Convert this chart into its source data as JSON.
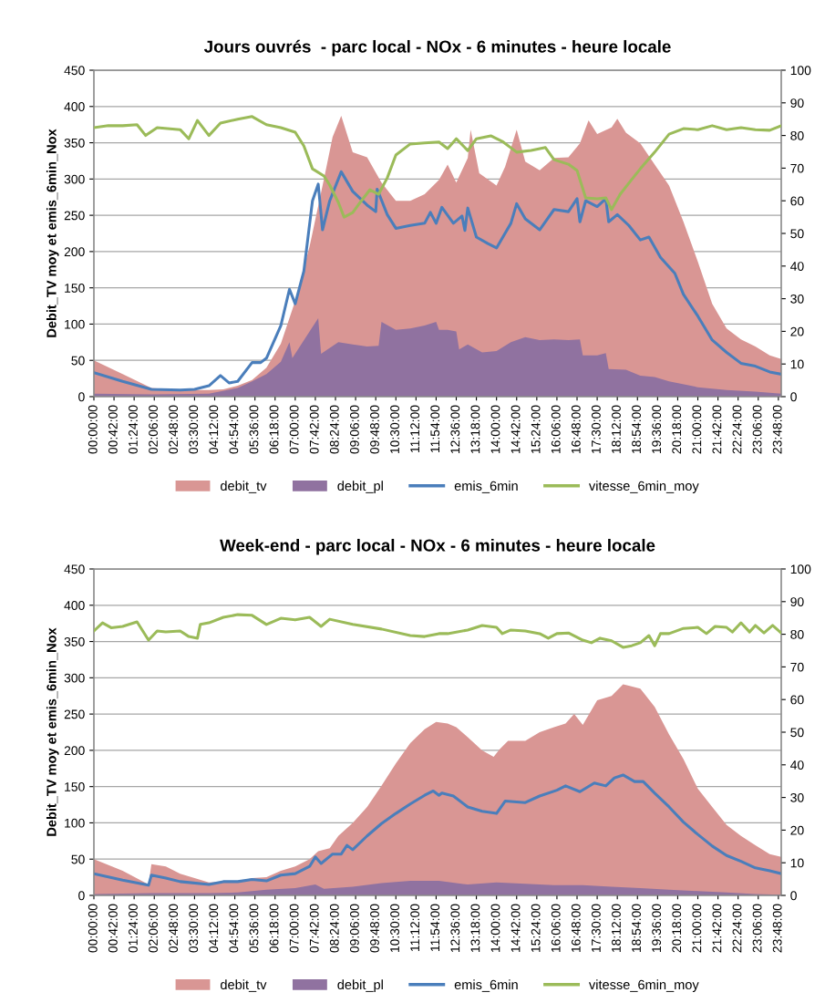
{
  "chart_data": [
    {
      "type": "area",
      "title": "Jours ouvrés  - parc local - NOx - 6 minutes - heure locale",
      "ylabel": "Debit_TV moy et emis_6min_Nox",
      "xlim": [
        0,
        23.9
      ],
      "ylim": [
        0,
        450
      ],
      "yticks": [
        0,
        50,
        100,
        150,
        200,
        250,
        300,
        350,
        400,
        450
      ],
      "y2lim": [
        0,
        100
      ],
      "y2ticks": [
        0,
        10,
        20,
        30,
        40,
        50,
        60,
        70,
        80,
        90,
        100
      ],
      "grid": "y",
      "legend": "bottom",
      "xticks": [
        {
          "value": 0,
          "label": "00:00:00"
        },
        {
          "value": 0.7,
          "label": "00:42:00"
        },
        {
          "value": 1.4,
          "label": "01:24:00"
        },
        {
          "value": 2.1,
          "label": "02:06:00"
        },
        {
          "value": 2.8,
          "label": "02:48:00"
        },
        {
          "value": 3.5,
          "label": "03:30:00"
        },
        {
          "value": 4.2,
          "label": "04:12:00"
        },
        {
          "value": 4.9,
          "label": "04:54:00"
        },
        {
          "value": 5.6,
          "label": "05:36:00"
        },
        {
          "value": 6.3,
          "label": "06:18:00"
        },
        {
          "value": 7,
          "label": "07:00:00"
        },
        {
          "value": 7.7,
          "label": "07:42:00"
        },
        {
          "value": 8.4,
          "label": "08:24:00"
        },
        {
          "value": 9.1,
          "label": "09:06:00"
        },
        {
          "value": 9.8,
          "label": "09:48:00"
        },
        {
          "value": 10.5,
          "label": "10:30:00"
        },
        {
          "value": 11.2,
          "label": "11:12:00"
        },
        {
          "value": 11.9,
          "label": "11:54:00"
        },
        {
          "value": 12.6,
          "label": "12:36:00"
        },
        {
          "value": 13.3,
          "label": "13:18:00"
        },
        {
          "value": 14,
          "label": "14:00:00"
        },
        {
          "value": 14.7,
          "label": "14:42:00"
        },
        {
          "value": 15.4,
          "label": "15:24:00"
        },
        {
          "value": 16.1,
          "label": "16:06:00"
        },
        {
          "value": 16.8,
          "label": "16:48:00"
        },
        {
          "value": 17.5,
          "label": "17:30:00"
        },
        {
          "value": 18.2,
          "label": "18:12:00"
        },
        {
          "value": 18.9,
          "label": "18:54:00"
        },
        {
          "value": 19.6,
          "label": "19:36:00"
        },
        {
          "value": 20.3,
          "label": "20:18:00"
        },
        {
          "value": 21,
          "label": "21:00:00"
        },
        {
          "value": 21.7,
          "label": "21:42:00"
        },
        {
          "value": 22.4,
          "label": "22:24:00"
        },
        {
          "value": 23.1,
          "label": "23:06:00"
        },
        {
          "value": 23.8,
          "label": "23:48:00"
        }
      ],
      "series": [
        {
          "name": "debit_tv",
          "color": "#d99694",
          "x": [
            0,
            1,
            2,
            3,
            4,
            4.5,
            5,
            5.5,
            6,
            6.5,
            7,
            7.5,
            8,
            8.3,
            8.6,
            9,
            9.5,
            10,
            10.5,
            11,
            11.5,
            12,
            12.3,
            12.6,
            13,
            13.1,
            13.4,
            14,
            14.3,
            14.7,
            15,
            15.5,
            16,
            16.5,
            16.9,
            17.2,
            17.5,
            18,
            18.2,
            18.5,
            19,
            19.5,
            20,
            20.5,
            21,
            21.5,
            22,
            22.5,
            23,
            23.5,
            23.9
          ],
          "values": [
            50,
            31,
            12,
            9,
            9,
            10,
            15,
            23,
            40,
            73,
            132,
            207,
            300,
            358,
            387,
            337,
            330,
            295,
            270,
            270,
            279,
            299,
            320,
            295,
            329,
            368,
            308,
            291,
            317,
            368,
            324,
            312,
            329,
            330,
            349,
            381,
            362,
            371,
            383,
            364,
            349,
            320,
            291,
            241,
            186,
            128,
            94,
            79,
            69,
            57,
            52
          ]
        },
        {
          "name": "debit_pl",
          "color": "#9072a0",
          "x": [
            0,
            2,
            4,
            5,
            5.5,
            6,
            6.5,
            6.8,
            6.9,
            7.5,
            7.8,
            7.9,
            8.5,
            9,
            9.5,
            9.9,
            10,
            10.5,
            11,
            11.5,
            11.9,
            12,
            12.3,
            12.6,
            12.7,
            13,
            13.5,
            14,
            14.5,
            15,
            15.5,
            16,
            16.5,
            16.9,
            17,
            17.5,
            17.8,
            17.9,
            18.5,
            19,
            19.5,
            20,
            21,
            22,
            23,
            23.9
          ],
          "values": [
            4,
            3,
            4,
            12,
            21,
            31,
            48,
            75,
            53,
            90,
            108,
            59,
            75,
            72,
            69,
            70,
            103,
            92,
            94,
            98,
            103,
            92,
            92,
            90,
            65,
            72,
            61,
            63,
            75,
            82,
            78,
            79,
            78,
            79,
            57,
            57,
            60,
            38,
            37,
            29,
            27,
            21,
            13,
            9,
            7,
            4
          ]
        },
        {
          "name": "emis_6min",
          "type": "line",
          "color": "#4a7ebb",
          "x": [
            0,
            1,
            2,
            3,
            3.5,
            4,
            4.4,
            4.7,
            5,
            5.5,
            5.8,
            6,
            6.5,
            6.8,
            7,
            7.3,
            7.6,
            7.8,
            7.95,
            8.2,
            8.6,
            9,
            9.5,
            9.8,
            9.85,
            10.2,
            10.5,
            11,
            11.5,
            11.7,
            11.9,
            12.1,
            12.5,
            12.8,
            12.9,
            13,
            13.3,
            13.7,
            14,
            14.5,
            14.7,
            15,
            15.5,
            16,
            16.5,
            16.8,
            16.9,
            17.1,
            17.5,
            17.8,
            17.9,
            18.2,
            18.6,
            19,
            19.3,
            19.7,
            20.2,
            20.5,
            21,
            21.5,
            22,
            22.5,
            23,
            23.5,
            23.9
          ],
          "values": [
            33,
            21,
            10,
            9,
            10,
            15,
            29,
            19,
            21,
            47,
            47,
            53,
            98,
            148,
            128,
            173,
            270,
            293,
            230,
            270,
            310,
            283,
            264,
            255,
            286,
            251,
            232,
            236,
            239,
            254,
            239,
            261,
            239,
            249,
            229,
            260,
            220,
            211,
            205,
            239,
            266,
            245,
            230,
            258,
            255,
            273,
            241,
            270,
            262,
            273,
            241,
            251,
            236,
            216,
            220,
            192,
            170,
            141,
            111,
            78,
            61,
            46,
            42,
            34,
            31
          ]
        },
        {
          "name": "vitesse_6min_moy",
          "type": "line",
          "axis": "y2",
          "color": "#9bbb59",
          "x": [
            0,
            0.5,
            1,
            1.5,
            1.8,
            2.2,
            3,
            3.3,
            3.6,
            4,
            4.4,
            5,
            5.5,
            6,
            6.5,
            7,
            7.3,
            7.6,
            8,
            8.2,
            8.5,
            8.7,
            9,
            9.3,
            9.6,
            9.9,
            10.2,
            10.5,
            11,
            11.5,
            12,
            12.3,
            12.6,
            13,
            13.3,
            13.8,
            14.2,
            14.7,
            15.2,
            15.7,
            16,
            16.5,
            16.8,
            17.1,
            17.5,
            17.8,
            18,
            18.3,
            18.7,
            19,
            19.5,
            20,
            20.5,
            21,
            21.5,
            22,
            22.5,
            23,
            23.5,
            23.9
          ],
          "values": [
            82.4,
            83,
            83,
            83.3,
            80,
            82.4,
            81.8,
            79,
            84.6,
            80,
            83.8,
            85,
            85.8,
            83.3,
            82.4,
            81,
            76.8,
            69.8,
            67.6,
            64.8,
            59.5,
            55,
            56.4,
            60,
            63.4,
            62,
            67,
            74,
            77.4,
            77.7,
            78,
            76,
            79,
            75.4,
            79,
            79.9,
            78.2,
            74.9,
            75.4,
            76.3,
            72.6,
            71.2,
            69.3,
            60.9,
            60.6,
            60.9,
            57.3,
            62,
            66.5,
            69.8,
            74.9,
            80.4,
            82.1,
            81.8,
            83,
            81.8,
            82.4,
            81.8,
            81.6,
            83
          ]
        }
      ]
    },
    {
      "type": "area",
      "title": "Week-end - parc local - NOx - 6 minutes - heure locale",
      "ylabel": "Debit_TV moy et emis_6min_Nox",
      "xlim": [
        0,
        23.9
      ],
      "ylim": [
        0,
        450
      ],
      "yticks": [
        0,
        50,
        100,
        150,
        200,
        250,
        300,
        350,
        400,
        450
      ],
      "y2lim": [
        0,
        100
      ],
      "y2ticks": [
        0,
        10,
        20,
        30,
        40,
        50,
        60,
        70,
        80,
        90,
        100
      ],
      "grid": "y",
      "legend": "bottom",
      "xticks": [
        {
          "value": 0,
          "label": "00:00:00"
        },
        {
          "value": 0.7,
          "label": "00:42:00"
        },
        {
          "value": 1.4,
          "label": "01:24:00"
        },
        {
          "value": 2.1,
          "label": "02:06:00"
        },
        {
          "value": 2.8,
          "label": "02:48:00"
        },
        {
          "value": 3.5,
          "label": "03:30:00"
        },
        {
          "value": 4.2,
          "label": "04:12:00"
        },
        {
          "value": 4.9,
          "label": "04:54:00"
        },
        {
          "value": 5.6,
          "label": "05:36:00"
        },
        {
          "value": 6.3,
          "label": "06:18:00"
        },
        {
          "value": 7,
          "label": "07:00:00"
        },
        {
          "value": 7.7,
          "label": "07:42:00"
        },
        {
          "value": 8.4,
          "label": "08:24:00"
        },
        {
          "value": 9.1,
          "label": "09:06:00"
        },
        {
          "value": 9.8,
          "label": "09:48:00"
        },
        {
          "value": 10.5,
          "label": "10:30:00"
        },
        {
          "value": 11.2,
          "label": "11:12:00"
        },
        {
          "value": 11.9,
          "label": "11:54:00"
        },
        {
          "value": 12.6,
          "label": "12:36:00"
        },
        {
          "value": 13.3,
          "label": "13:18:00"
        },
        {
          "value": 14,
          "label": "14:00:00"
        },
        {
          "value": 14.7,
          "label": "14:42:00"
        },
        {
          "value": 15.4,
          "label": "15:24:00"
        },
        {
          "value": 16.1,
          "label": "16:06:00"
        },
        {
          "value": 16.8,
          "label": "16:48:00"
        },
        {
          "value": 17.5,
          "label": "17:30:00"
        },
        {
          "value": 18.2,
          "label": "18:12:00"
        },
        {
          "value": 18.9,
          "label": "18:54:00"
        },
        {
          "value": 19.6,
          "label": "19:36:00"
        },
        {
          "value": 20.3,
          "label": "20:18:00"
        },
        {
          "value": 21,
          "label": "21:00:00"
        },
        {
          "value": 21.7,
          "label": "21:42:00"
        },
        {
          "value": 22.4,
          "label": "22:24:00"
        },
        {
          "value": 23.1,
          "label": "23:06:00"
        },
        {
          "value": 23.8,
          "label": "23:48:00"
        }
      ],
      "series": [
        {
          "name": "debit_tv",
          "color": "#d99694",
          "x": [
            0,
            1,
            1.9,
            2,
            2.5,
            3,
            3.5,
            4,
            4.5,
            5,
            5.5,
            6,
            6.5,
            7,
            7.5,
            7.8,
            8.2,
            8.5,
            9,
            9.5,
            10,
            10.5,
            11,
            11.5,
            11.9,
            12.3,
            12.6,
            13,
            13.5,
            13.9,
            14.1,
            14.4,
            15,
            15.5,
            16,
            16.4,
            16.7,
            17,
            17.5,
            18,
            18.4,
            18.6,
            19,
            19.5,
            20,
            20.5,
            21,
            21.5,
            22,
            22.5,
            23,
            23.5,
            23.9
          ],
          "values": [
            50,
            34,
            15,
            43,
            40,
            30,
            24,
            18,
            19,
            19,
            24,
            25,
            34,
            40,
            50,
            61,
            65,
            82,
            100,
            122,
            151,
            182,
            210,
            229,
            239,
            237,
            232,
            218,
            200,
            191,
            201,
            213,
            213,
            225,
            232,
            237,
            250,
            235,
            269,
            275,
            291,
            289,
            285,
            260,
            222,
            188,
            147,
            122,
            97,
            82,
            69,
            57,
            53
          ]
        },
        {
          "name": "debit_pl",
          "color": "#9072a0",
          "x": [
            0,
            2,
            4,
            5,
            6,
            7,
            7.7,
            8,
            9,
            10,
            11,
            12,
            13,
            14,
            15,
            16,
            17,
            18,
            19,
            20,
            21,
            22,
            23,
            23.9
          ],
          "values": [
            2,
            3,
            3,
            4,
            8,
            10,
            15,
            9,
            12,
            17,
            20,
            20,
            15,
            18,
            16,
            14,
            14,
            12,
            10,
            8,
            6,
            4,
            2,
            1
          ]
        },
        {
          "name": "emis_6min",
          "type": "line",
          "color": "#4a7ebb",
          "x": [
            0,
            1,
            1.9,
            2,
            2.5,
            3,
            4,
            4.5,
            5,
            5.5,
            6,
            6.5,
            7,
            7.5,
            7.7,
            7.9,
            8.3,
            8.6,
            8.8,
            9,
            9.5,
            10,
            10.5,
            11,
            11.5,
            11.8,
            12,
            12.1,
            12.5,
            13,
            13.5,
            14,
            14.3,
            15,
            15.5,
            16.1,
            16.4,
            16.9,
            17.4,
            17.8,
            18.1,
            18.4,
            18.8,
            19.1,
            19.5,
            20,
            20.5,
            21,
            21.5,
            22,
            22.5,
            23,
            23.5,
            23.9
          ],
          "values": [
            30,
            21,
            14,
            28,
            24,
            19,
            15,
            19,
            19,
            22,
            20,
            28,
            30,
            40,
            53,
            44,
            57,
            57,
            69,
            63,
            82,
            99,
            113,
            126,
            138,
            144,
            138,
            141,
            137,
            122,
            116,
            113,
            130,
            128,
            137,
            145,
            151,
            143,
            155,
            151,
            162,
            166,
            157,
            157,
            141,
            122,
            101,
            84,
            68,
            55,
            47,
            38,
            34,
            30
          ]
        },
        {
          "name": "vitesse_6min_moy",
          "type": "line",
          "axis": "y2",
          "color": "#9bbb59",
          "x": [
            0,
            0.3,
            0.6,
            1,
            1.5,
            1.9,
            2.2,
            2.5,
            3,
            3.3,
            3.6,
            3.7,
            4,
            4.5,
            5,
            5.5,
            6,
            6.5,
            7,
            7.5,
            7.9,
            8.2,
            9,
            10,
            11,
            11.5,
            12,
            12.3,
            13,
            13.5,
            14,
            14.2,
            14.5,
            15,
            15.5,
            15.8,
            16.1,
            16.5,
            17,
            17.3,
            17.6,
            18,
            18.4,
            18.7,
            19,
            19.3,
            19.5,
            19.7,
            20,
            20.5,
            21,
            21.3,
            21.6,
            22,
            22.2,
            22.5,
            22.8,
            23,
            23.3,
            23.6,
            23.9
          ],
          "values": [
            81,
            83.5,
            82,
            82.4,
            83.8,
            78.2,
            81,
            80.7,
            81,
            79.3,
            78.8,
            83,
            83.5,
            85.2,
            86,
            85.8,
            83,
            84.9,
            84.4,
            85.2,
            82.4,
            84.6,
            83,
            81.6,
            79.6,
            79.3,
            80.2,
            80.2,
            81.3,
            82.7,
            82.1,
            80.2,
            81.3,
            81,
            80.2,
            78.8,
            80.2,
            80.4,
            78.2,
            77.4,
            78.8,
            78,
            76,
            76.5,
            77.4,
            79.6,
            76.5,
            80.2,
            80.2,
            81.8,
            82.1,
            80.2,
            82.4,
            82.1,
            80.7,
            83.5,
            80.7,
            82.7,
            80.4,
            82.7,
            80.4
          ]
        }
      ]
    }
  ]
}
